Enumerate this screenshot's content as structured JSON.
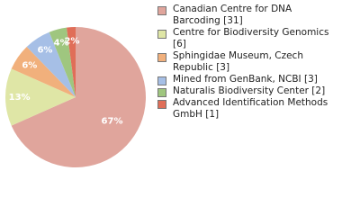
{
  "chart_data": {
    "type": "pie",
    "series": [
      {
        "name": "Canadian Centre for DNA Barcoding [31]",
        "color": "#e0a59c",
        "values": [
          67
        ]
      },
      {
        "name": "Centre for Biodiversity Genomics [6]",
        "color": "#dfe6a6",
        "values": [
          13
        ]
      },
      {
        "name": "Sphingidae Museum, Czech Republic [3]",
        "color": "#f1b07c",
        "values": [
          6
        ]
      },
      {
        "name": "Mined from GenBank, NCBI [3]",
        "color": "#a6bfe6",
        "values": [
          6
        ]
      },
      {
        "name": "Naturalis Biodiversity Center [2]",
        "color": "#9fc67f",
        "values": [
          4
        ]
      },
      {
        "name": "Advanced Identification Methods GmbH [1]",
        "color": "#e06e58",
        "values": [
          2
        ]
      }
    ],
    "value_labels": [
      "67%",
      "13%",
      "6%",
      "6%",
      "4%",
      "2%"
    ]
  }
}
